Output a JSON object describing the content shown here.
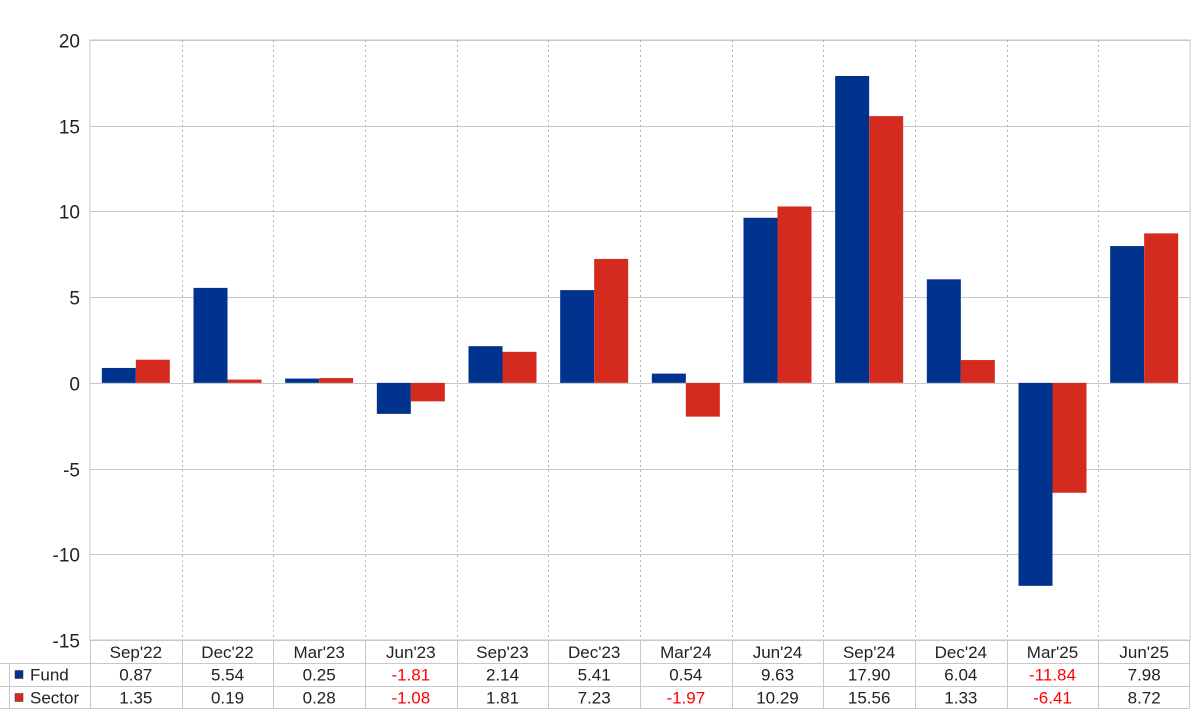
{
  "chart_data": {
    "type": "bar",
    "categories": [
      "Sep'22",
      "Dec'22",
      "Mar'23",
      "Jun'23",
      "Sep'23",
      "Dec'23",
      "Mar'24",
      "Jun'24",
      "Sep'24",
      "Dec'24",
      "Mar'25",
      "Jun'25"
    ],
    "series": [
      {
        "name": "Fund",
        "color": "#00338d",
        "values": [
          0.87,
          5.54,
          0.25,
          -1.81,
          2.14,
          5.41,
          0.54,
          9.63,
          17.9,
          6.04,
          -11.84,
          7.98
        ],
        "labels": [
          "0.87",
          "5.54",
          "0.25",
          "-1.81",
          "2.14",
          "5.41",
          "0.54",
          "9.63",
          "17.90",
          "6.04",
          "-11.84",
          "7.98"
        ]
      },
      {
        "name": "Sector",
        "color": "#d52b1e",
        "values": [
          1.35,
          0.19,
          0.28,
          -1.08,
          1.81,
          7.23,
          -1.97,
          10.29,
          15.56,
          1.33,
          -6.41,
          8.72
        ],
        "labels": [
          "1.35",
          "0.19",
          "0.28",
          "-1.08",
          "1.81",
          "7.23",
          "-1.97",
          "10.29",
          "15.56",
          "1.33",
          "-6.41",
          "8.72"
        ]
      }
    ],
    "ylim": [
      -15,
      20
    ],
    "yticks": [
      "-15",
      "-10",
      "-5",
      "0",
      "5",
      "10",
      "15",
      "20"
    ],
    "grid": true,
    "legend": "data-table-left",
    "negative_value_color": "#ff0000"
  }
}
